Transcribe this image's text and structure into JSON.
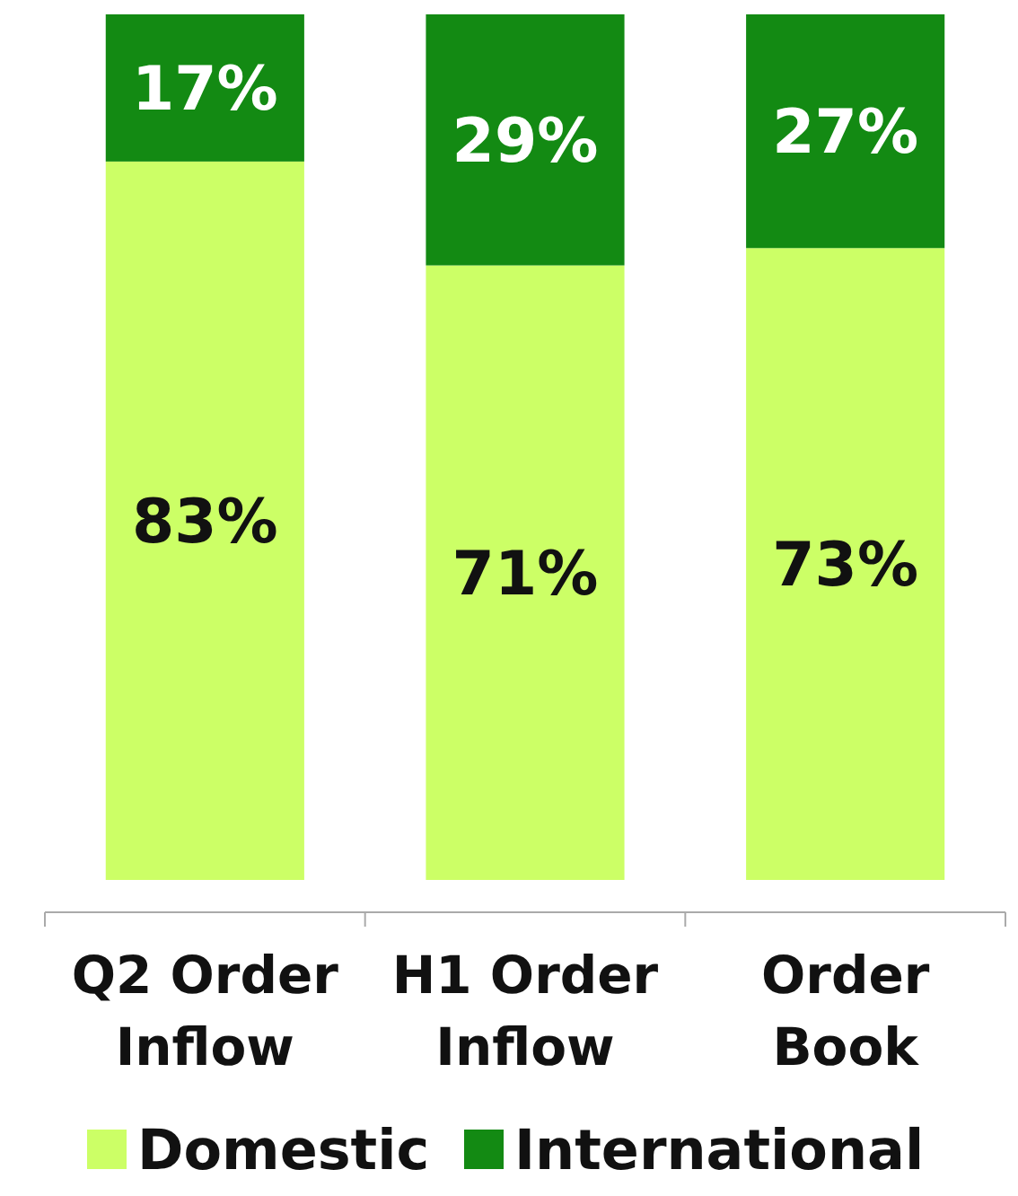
{
  "chart_data": {
    "type": "bar",
    "stacked": true,
    "categories": [
      "Q2 Order Inflow",
      "H1 Order Inflow",
      "Order Book"
    ],
    "series": [
      {
        "name": "Domestic",
        "color": "#ccff66",
        "values": [
          83,
          71,
          73
        ],
        "value_labels": [
          "83%",
          "71%",
          "73%"
        ]
      },
      {
        "name": "International",
        "color": "#138a13",
        "values": [
          17,
          29,
          27
        ],
        "value_labels": [
          "17%",
          "29%",
          "27%"
        ]
      }
    ],
    "ylim": [
      0,
      100
    ],
    "tick_labels": "x",
    "legend": "bottom"
  }
}
